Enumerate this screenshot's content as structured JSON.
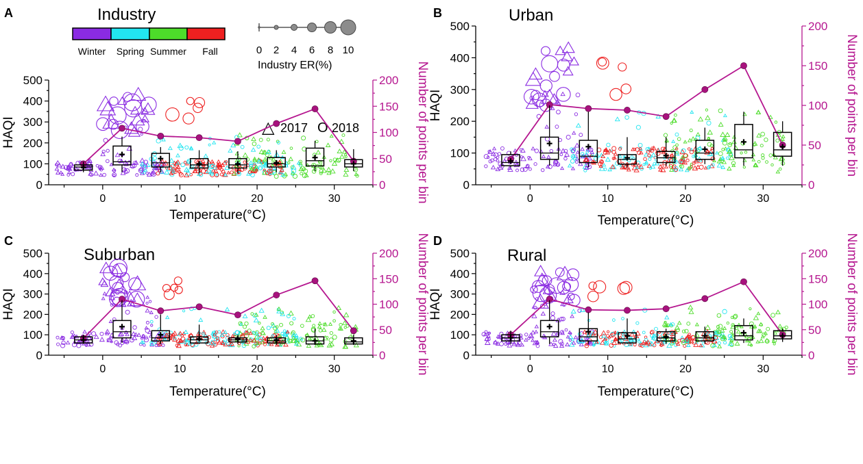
{
  "figure": {
    "legend": {
      "season_title": "Industry",
      "seasons": [
        {
          "label": "Winter",
          "color": "#8a2be2"
        },
        {
          "label": "Spring",
          "color": "#22e5f0"
        },
        {
          "label": "Summer",
          "color": "#4ddc2a"
        },
        {
          "label": "Fall",
          "color": "#ee2020"
        }
      ],
      "size_values": [
        0,
        2,
        4,
        6,
        8,
        10
      ],
      "size_label": "Industry ER(%)",
      "year_2017_marker": "△",
      "year_2017_label": "2017",
      "year_2018_marker": "O",
      "year_2018_label": "2018"
    },
    "colors": {
      "box": "#000000",
      "count_line": "#b5168f",
      "count_marker": "#a8127e"
    }
  },
  "chart_data": [
    {
      "type": "box",
      "panel_letter": "A",
      "title": "",
      "xlabel": "Temperature(°C)",
      "ylabel": "HAQI",
      "y2label": "Number of points per bin",
      "xlim": [
        -7,
        35
      ],
      "ylim": [
        0,
        500
      ],
      "y2lim": [
        0,
        200
      ],
      "xticks": [
        0,
        10,
        20,
        30
      ],
      "yticks": [
        0,
        100,
        200,
        300,
        400,
        500
      ],
      "y2ticks": [
        0,
        50,
        100,
        150,
        200
      ],
      "bins": [
        -2.5,
        2.5,
        7.5,
        12.5,
        17.5,
        22.5,
        27.5,
        32.5
      ],
      "box": {
        "q1": [
          70,
          95,
          85,
          80,
          80,
          85,
          90,
          85
        ],
        "median": [
          85,
          110,
          105,
          95,
          95,
          100,
          115,
          100
        ],
        "q3": [
          95,
          185,
          150,
          125,
          125,
          130,
          175,
          120
        ],
        "whisker_low": [
          60,
          60,
          60,
          55,
          55,
          60,
          65,
          65
        ],
        "whisker_high": [
          110,
          230,
          180,
          165,
          160,
          165,
          210,
          170
        ],
        "mean": [
          82,
          145,
          125,
          100,
          100,
          105,
          130,
          100
        ]
      },
      "counts": [
        40,
        108,
        93,
        90,
        83,
        117,
        145,
        45
      ]
    },
    {
      "type": "box",
      "panel_letter": "B",
      "title": "Urban",
      "xlabel": "Temperature(°C)",
      "ylabel": "HAQI",
      "y2label": "Number of points per bin",
      "xlim": [
        -7,
        35
      ],
      "ylim": [
        0,
        500
      ],
      "y2lim": [
        0,
        200
      ],
      "xticks": [
        0,
        10,
        20,
        30
      ],
      "yticks": [
        0,
        100,
        200,
        300,
        400,
        500
      ],
      "y2ticks": [
        0,
        50,
        100,
        150,
        200
      ],
      "bins": [
        -2.5,
        2.5,
        7.5,
        12.5,
        17.5,
        22.5,
        27.5,
        32.5
      ],
      "box": {
        "q1": [
          60,
          80,
          70,
          65,
          70,
          80,
          85,
          90
        ],
        "median": [
          70,
          100,
          90,
          80,
          85,
          100,
          110,
          110
        ],
        "q3": [
          95,
          150,
          140,
          95,
          105,
          140,
          190,
          165
        ],
        "whisker_low": [
          55,
          60,
          55,
          55,
          60,
          65,
          60,
          60
        ],
        "whisker_high": [
          105,
          250,
          230,
          150,
          150,
          180,
          230,
          200
        ],
        "mean": [
          75,
          130,
          120,
          85,
          92,
          112,
          135,
          120
        ]
      },
      "counts": [
        32,
        101,
        96,
        94,
        86,
        120,
        150,
        50
      ]
    },
    {
      "type": "box",
      "panel_letter": "C",
      "title": "Suburban",
      "xlabel": "Temperature(°C)",
      "ylabel": "HAQI",
      "y2label": "Number of points per bin",
      "xlim": [
        -7,
        35
      ],
      "ylim": [
        0,
        500
      ],
      "y2lim": [
        0,
        200
      ],
      "xticks": [
        0,
        10,
        20,
        30
      ],
      "yticks": [
        0,
        100,
        200,
        300,
        400,
        500
      ],
      "y2ticks": [
        0,
        50,
        100,
        150,
        200
      ],
      "bins": [
        -2.5,
        2.5,
        7.5,
        12.5,
        17.5,
        22.5,
        27.5,
        32.5
      ],
      "box": {
        "q1": [
          60,
          85,
          70,
          60,
          65,
          60,
          55,
          55
        ],
        "median": [
          75,
          115,
          85,
          75,
          75,
          70,
          70,
          65
        ],
        "q3": [
          90,
          170,
          120,
          90,
          85,
          85,
          90,
          85
        ],
        "whisker_low": [
          55,
          60,
          55,
          55,
          55,
          50,
          50,
          50
        ],
        "whisker_high": [
          100,
          270,
          200,
          150,
          100,
          100,
          130,
          100
        ],
        "mean": [
          75,
          140,
          100,
          80,
          80,
          75,
          70,
          70
        ]
      },
      "counts": [
        33,
        110,
        87,
        95,
        79,
        118,
        146,
        48
      ]
    },
    {
      "type": "box",
      "panel_letter": "D",
      "title": "Rural",
      "xlabel": "Temperature(°C)",
      "ylabel": "HAQI",
      "y2label": "Number of points per bin",
      "xlim": [
        -7,
        35
      ],
      "ylim": [
        0,
        500
      ],
      "y2lim": [
        0,
        200
      ],
      "xticks": [
        0,
        10,
        20,
        30
      ],
      "yticks": [
        0,
        100,
        200,
        300,
        400,
        500
      ],
      "y2ticks": [
        0,
        50,
        100,
        150,
        200
      ],
      "bins": [
        -2.5,
        2.5,
        7.5,
        12.5,
        17.5,
        22.5,
        27.5,
        32.5
      ],
      "box": {
        "q1": [
          70,
          90,
          70,
          60,
          70,
          70,
          75,
          80
        ],
        "median": [
          85,
          115,
          90,
          80,
          85,
          85,
          95,
          95
        ],
        "q3": [
          100,
          170,
          130,
          110,
          115,
          115,
          145,
          120
        ],
        "whisker_low": [
          55,
          55,
          55,
          55,
          55,
          55,
          60,
          65
        ],
        "whisker_high": [
          120,
          270,
          210,
          180,
          130,
          140,
          180,
          130
        ],
        "mean": [
          85,
          140,
          115,
          95,
          90,
          95,
          110,
          95
        ]
      },
      "counts": [
        40,
        110,
        89,
        88,
        91,
        111,
        144,
        40
      ]
    }
  ]
}
